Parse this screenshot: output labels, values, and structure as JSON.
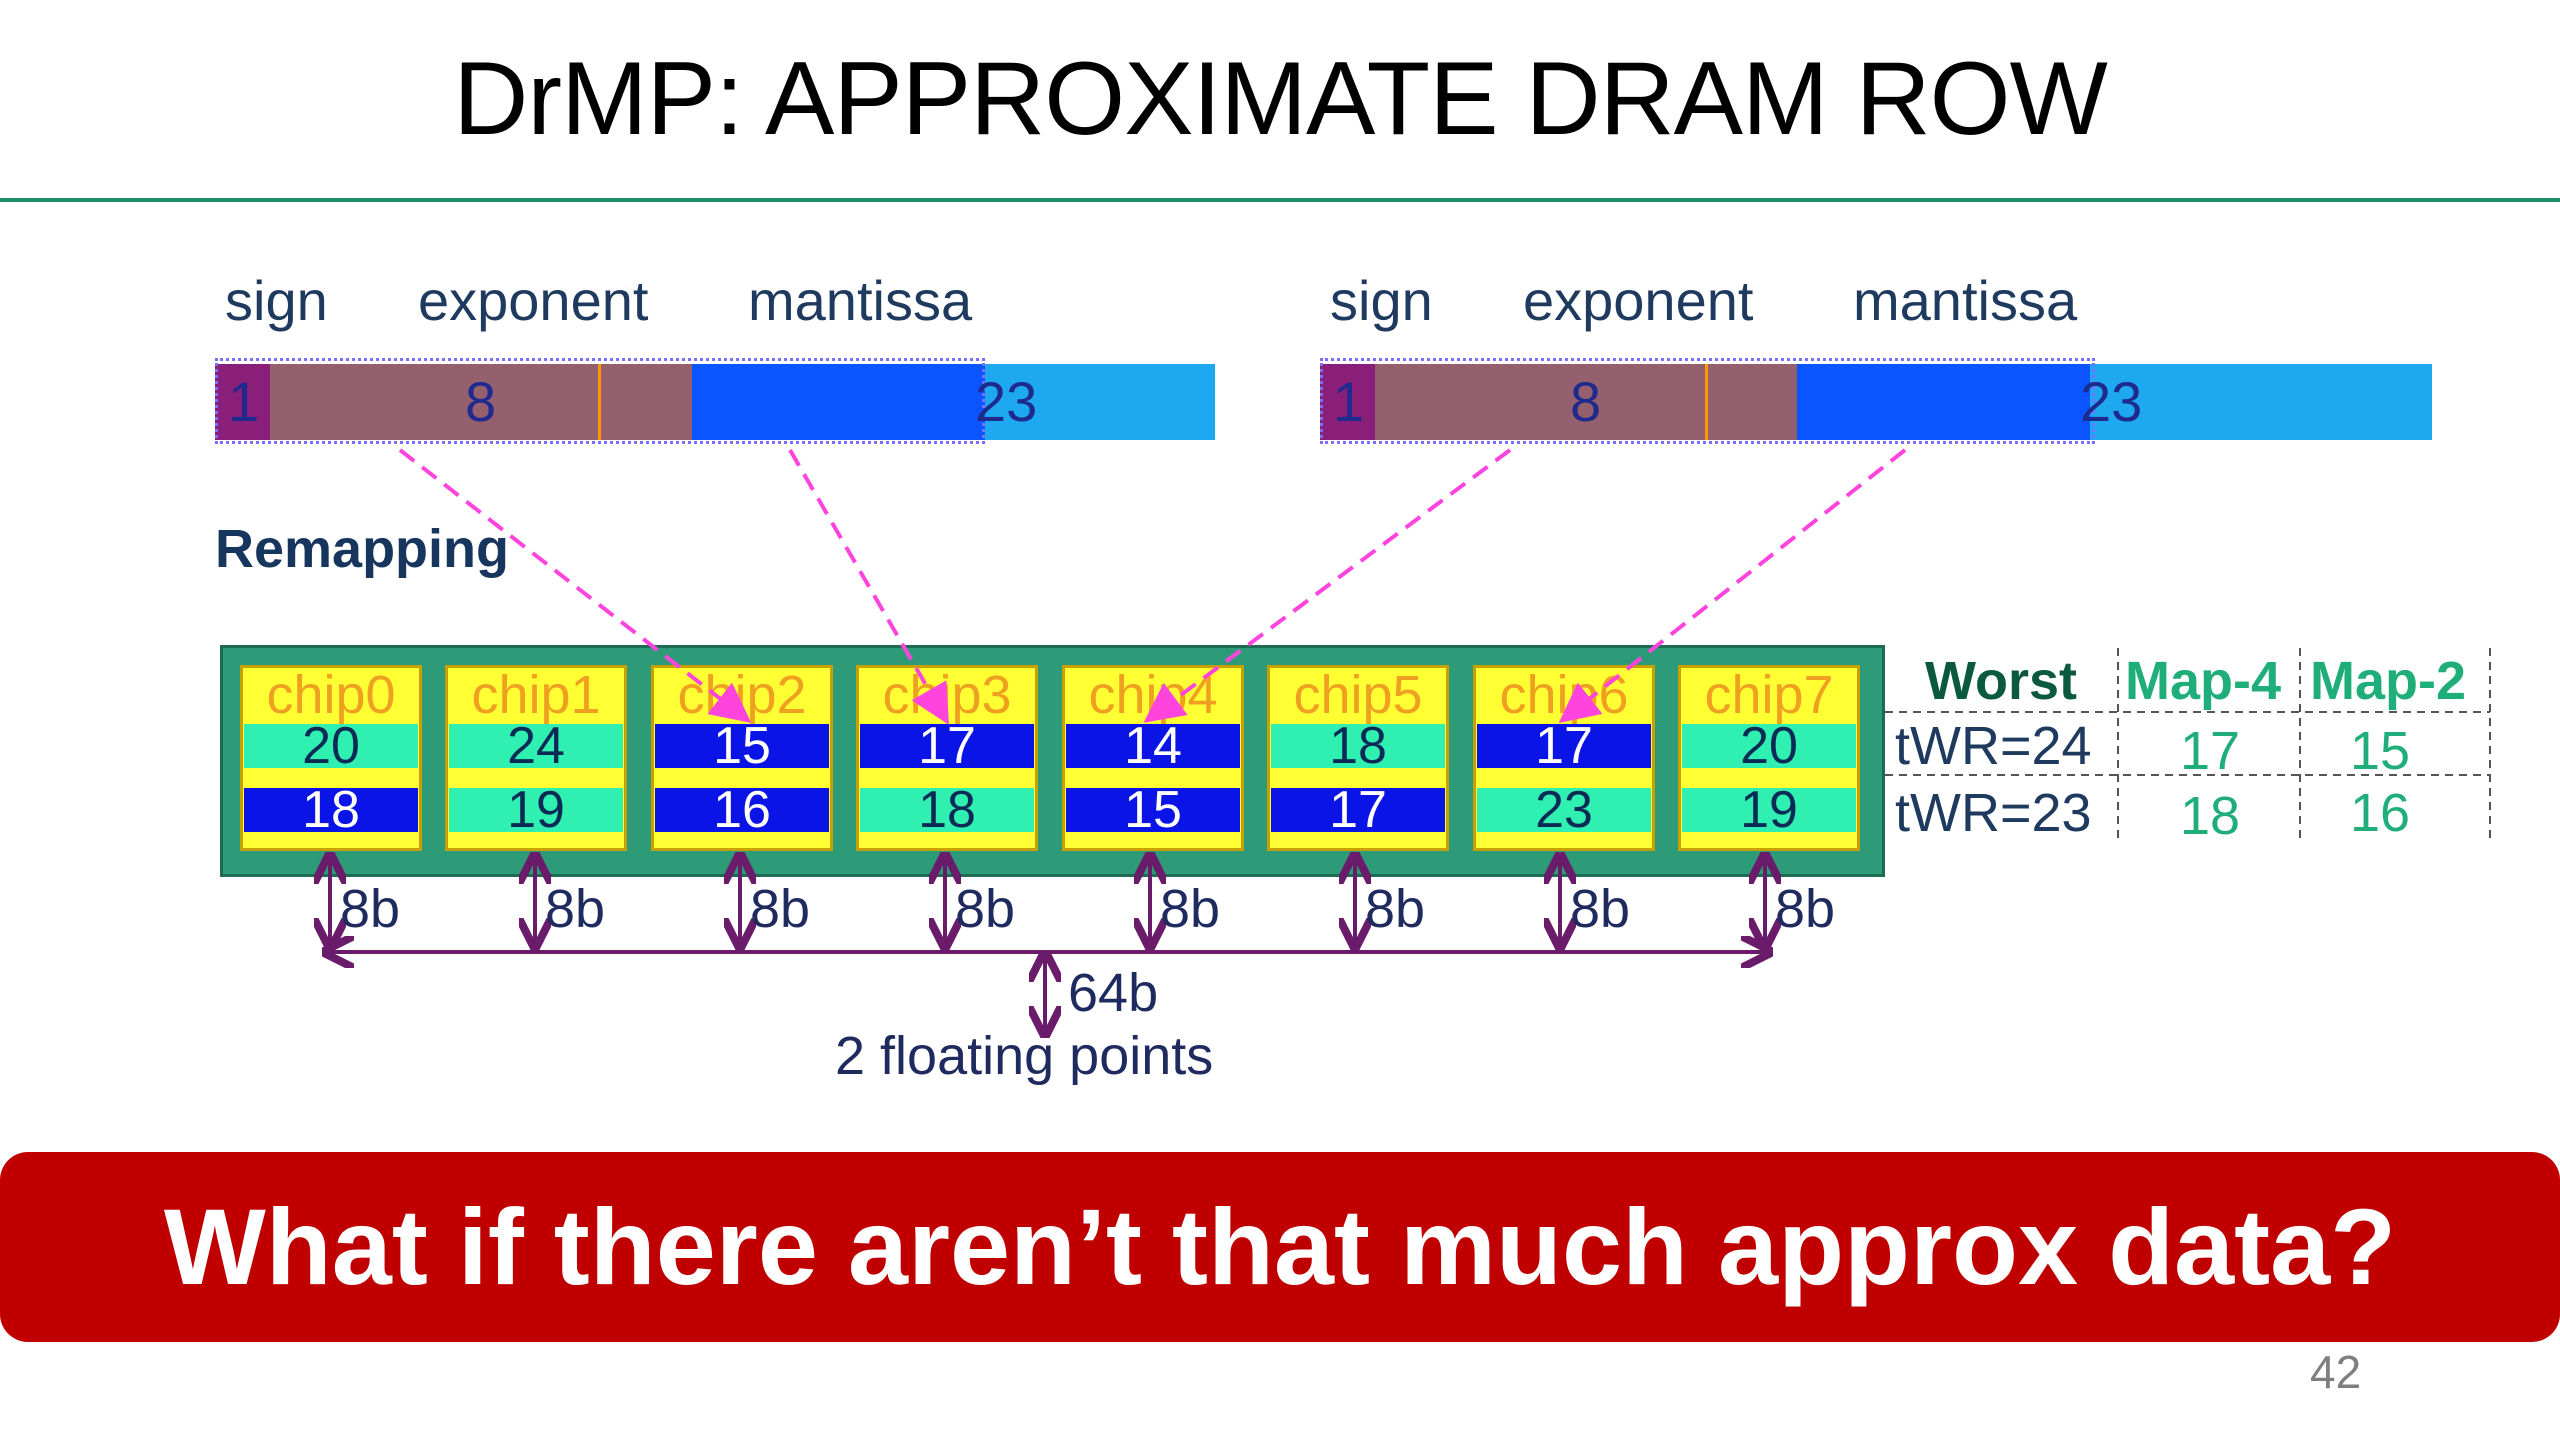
{
  "title": "DrMP: APPROXIMATE DRAM ROW",
  "float_left": {
    "sign": "sign",
    "exponent": "exponent",
    "mantissa": "mantissa",
    "sign_bits": "1",
    "exp_bits": "8",
    "man_bits": "23"
  },
  "float_right": {
    "sign": "sign",
    "exponent": "exponent",
    "mantissa": "mantissa",
    "sign_bits": "1",
    "exp_bits": "8",
    "man_bits": "23"
  },
  "remapping_label": "Remapping",
  "chips": [
    {
      "name": "chip0",
      "row1": "20",
      "row2": "18"
    },
    {
      "name": "chip1",
      "row1": "24",
      "row2": "19"
    },
    {
      "name": "chip2",
      "row1": "15",
      "row2": "16"
    },
    {
      "name": "chip3",
      "row1": "17",
      "row2": "18"
    },
    {
      "name": "chip4",
      "row1": "14",
      "row2": "15"
    },
    {
      "name": "chip5",
      "row1": "18",
      "row2": "17"
    },
    {
      "name": "chip6",
      "row1": "17",
      "row2": "23"
    },
    {
      "name": "chip7",
      "row1": "20",
      "row2": "19"
    }
  ],
  "bit_width_label": "8b",
  "total_bits": "64b",
  "total_caption": "2 floating points",
  "table": {
    "headers": [
      "Worst",
      "Map-4",
      "Map-2"
    ],
    "rows": [
      {
        "worst": "tWR=24",
        "map4": "17",
        "map2": "15"
      },
      {
        "worst": "tWR=23",
        "map4": "18",
        "map2": "16"
      }
    ]
  },
  "banner_text": "What if there aren’t that much approx data?",
  "page_number": "42",
  "colors": {
    "accent_green": "#1f8f6a",
    "banner_red": "#c00000",
    "chip_yellow": "#ffff33",
    "stripe_green": "#2ff0b0",
    "stripe_blue": "#0a14e6",
    "arrow_purple": "#6a1b6a",
    "remap_magenta": "#ff44dd"
  }
}
